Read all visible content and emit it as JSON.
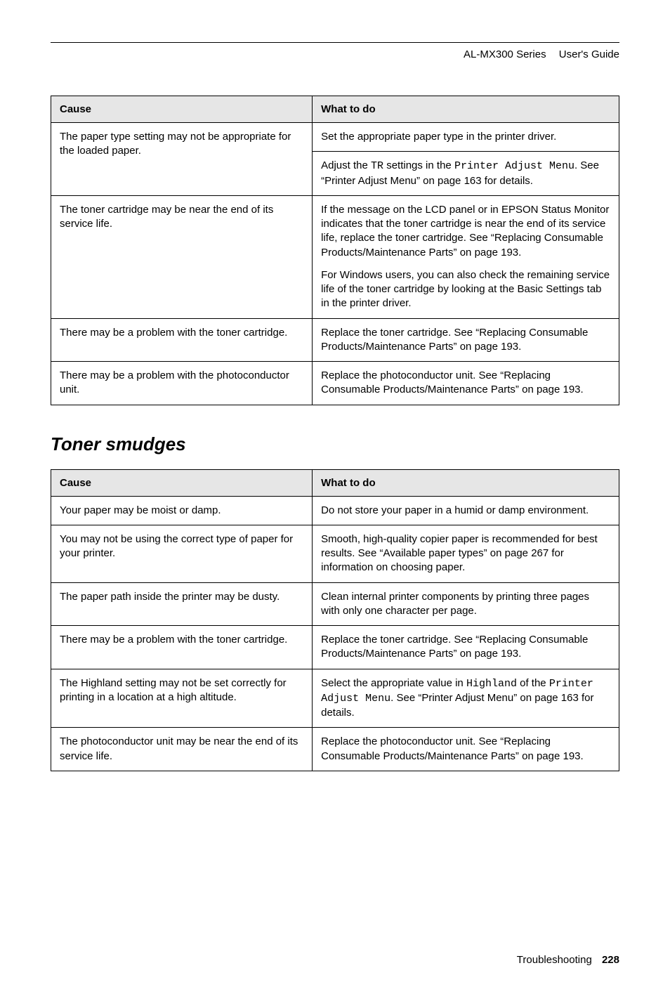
{
  "header": {
    "model": "AL-MX300 Series",
    "doc": "User's Guide"
  },
  "table1": {
    "headers": {
      "cause": "Cause",
      "what": "What to do"
    },
    "rows": [
      {
        "cause": "The paper type setting may not be appropriate for the loaded paper.",
        "what_a": "Set the appropriate paper type in the printer driver.",
        "what_b_pre": "Adjust the ",
        "what_b_mono1": "TR",
        "what_b_mid": " settings in the ",
        "what_b_mono2": "Printer Adjust Menu",
        "what_b_post": ". See “Printer Adjust Menu” on page 163 for details."
      },
      {
        "cause": "The toner cartridge may be near the end of its service life.",
        "what_a": "If the message on the LCD panel or in EPSON Status Monitor indicates that the toner cartridge is near the end of its service life, replace the toner cartridge. See “Replacing Consumable Products/Maintenance Parts” on page 193.",
        "what_b": "For Windows users, you can also check the remaining service life of the toner cartridge by looking at the Basic Settings tab in the printer driver."
      },
      {
        "cause": "There may be a problem with the toner cartridge.",
        "what": "Replace the toner cartridge. See “Replacing Consumable Products/Maintenance Parts” on page 193."
      },
      {
        "cause": "There may be a problem with the photoconductor unit.",
        "what": "Replace the photoconductor unit. See “Replacing Consumable Products/Maintenance Parts” on page 193."
      }
    ]
  },
  "section2_title": "Toner smudges",
  "table2": {
    "headers": {
      "cause": "Cause",
      "what": "What to do"
    },
    "rows": [
      {
        "cause": "Your paper may be moist or damp.",
        "what": "Do not store your paper in a humid or damp environment."
      },
      {
        "cause": "You may not be using the correct type of paper for your printer.",
        "what": "Smooth, high-quality copier paper is recommended for best results. See “Available paper types” on page 267 for information on choosing paper."
      },
      {
        "cause": "The paper path inside the printer may be dusty.",
        "what": "Clean internal printer components by printing three pages with only one character per page."
      },
      {
        "cause": "There may be a problem with the toner cartridge.",
        "what": "Replace the toner cartridge. See “Replacing Consumable Products/Maintenance Parts” on page 193."
      },
      {
        "cause": "The Highland setting may not be set correctly for printing in a location at a high altitude.",
        "what_pre": "Select the appropriate value in ",
        "what_mono1": "Highland",
        "what_mid": " of the ",
        "what_mono2": "Printer Adjust Menu",
        "what_post": ". See “Printer Adjust Menu” on page 163 for details."
      },
      {
        "cause": "The photoconductor unit may be near the end of its service life.",
        "what": "Replace the photoconductor unit. See “Replacing Consumable Products/Maintenance Parts” on page 193."
      }
    ]
  },
  "footer": {
    "section": "Troubleshooting",
    "page": "228"
  }
}
